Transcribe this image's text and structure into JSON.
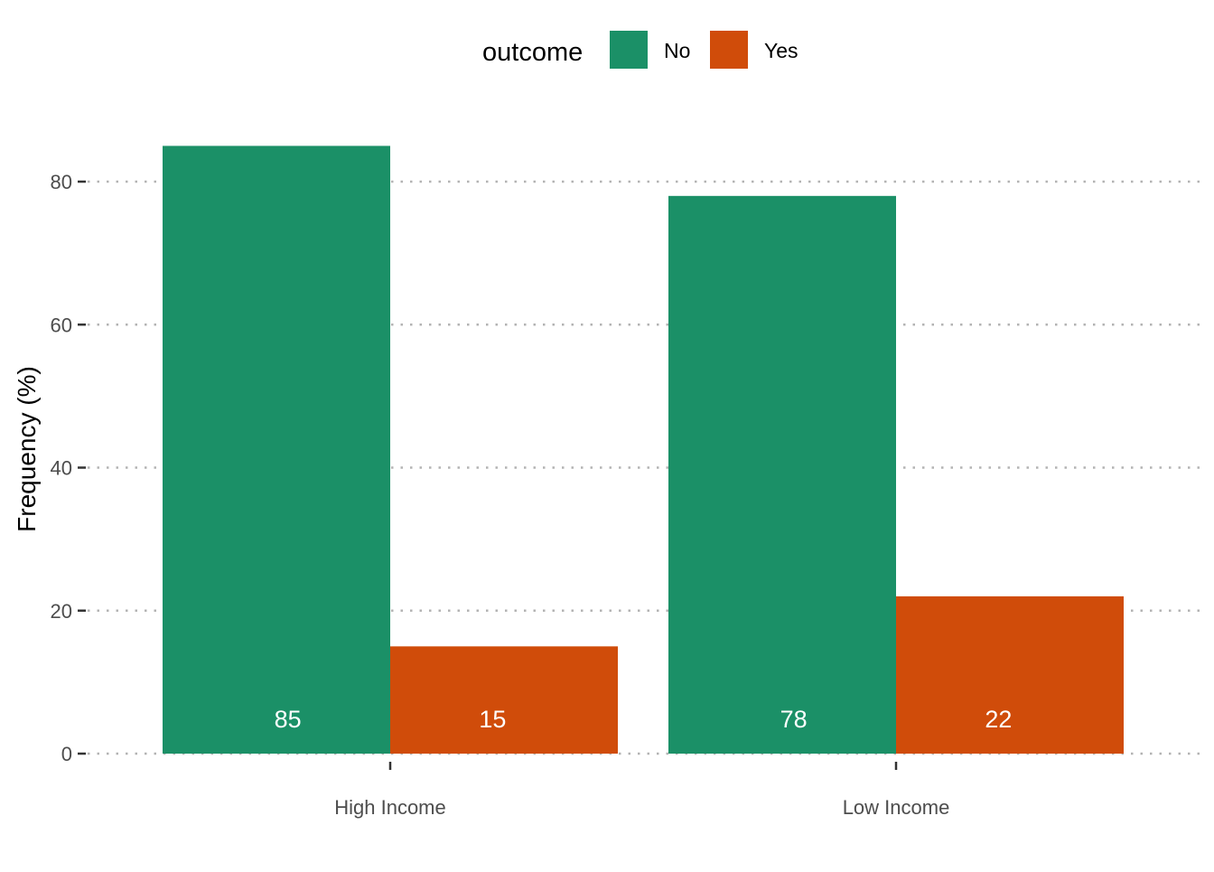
{
  "chart_data": {
    "type": "bar",
    "title": "",
    "xlabel": "",
    "ylabel": "Frequency (%)",
    "ylim": [
      0,
      85
    ],
    "yticks": [
      0,
      20,
      40,
      60,
      80
    ],
    "grid": "horizontal-dotted",
    "legend": {
      "title": "outcome",
      "placement": "top"
    },
    "categories": [
      "High Income",
      "Low Income"
    ],
    "series": [
      {
        "name": "No",
        "color": "#1b9067",
        "values": [
          85,
          78
        ],
        "labels": [
          "85",
          "78"
        ]
      },
      {
        "name": "Yes",
        "color": "#d04c0a",
        "values": [
          15,
          22
        ],
        "labels": [
          "15",
          "22"
        ]
      }
    ]
  }
}
